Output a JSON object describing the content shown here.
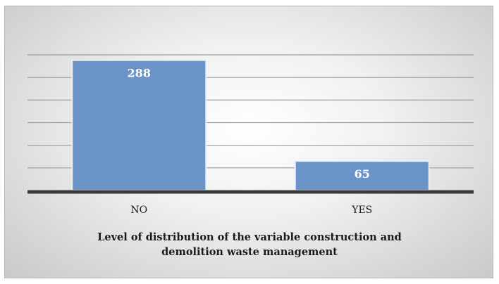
{
  "chart_data": {
    "type": "bar",
    "categories": [
      "NO",
      "YES"
    ],
    "values": [
      288,
      65
    ],
    "data_labels": [
      "288",
      "65"
    ],
    "title": "",
    "xlabel_lines": [
      "Level of distribution of the variable construction and",
      "demolition waste management"
    ],
    "ylabel": "",
    "ylim": [
      0,
      300
    ],
    "y_gridlines": [
      50,
      100,
      150,
      200,
      250,
      300
    ],
    "grid": true,
    "y_axis_labels_shown": false,
    "legend": "none",
    "bar_color": "#6a93c8"
  }
}
